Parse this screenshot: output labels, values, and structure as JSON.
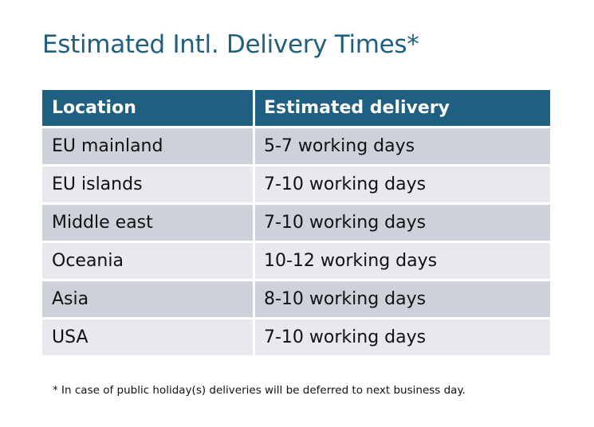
{
  "title": "Estimated Intl. Delivery Times*",
  "colors": {
    "header_bg": "#1f6082",
    "row_odd": "#cdd1d9",
    "row_even": "#e7e9ec",
    "title": "#1f5f80"
  },
  "table": {
    "headers": [
      "Location",
      "Estimated delivery"
    ],
    "rows": [
      [
        "EU mainland",
        "5-7 working days"
      ],
      [
        "EU islands",
        "7-10 working days"
      ],
      [
        "Middle east",
        "7-10 working days"
      ],
      [
        "Oceania",
        "10-12 working days"
      ],
      [
        "Asia",
        "8-10 working days"
      ],
      [
        "USA",
        "7-10 working days"
      ]
    ]
  },
  "footnote": "* In case of public holiday(s) deliveries will be deferred to next business day."
}
